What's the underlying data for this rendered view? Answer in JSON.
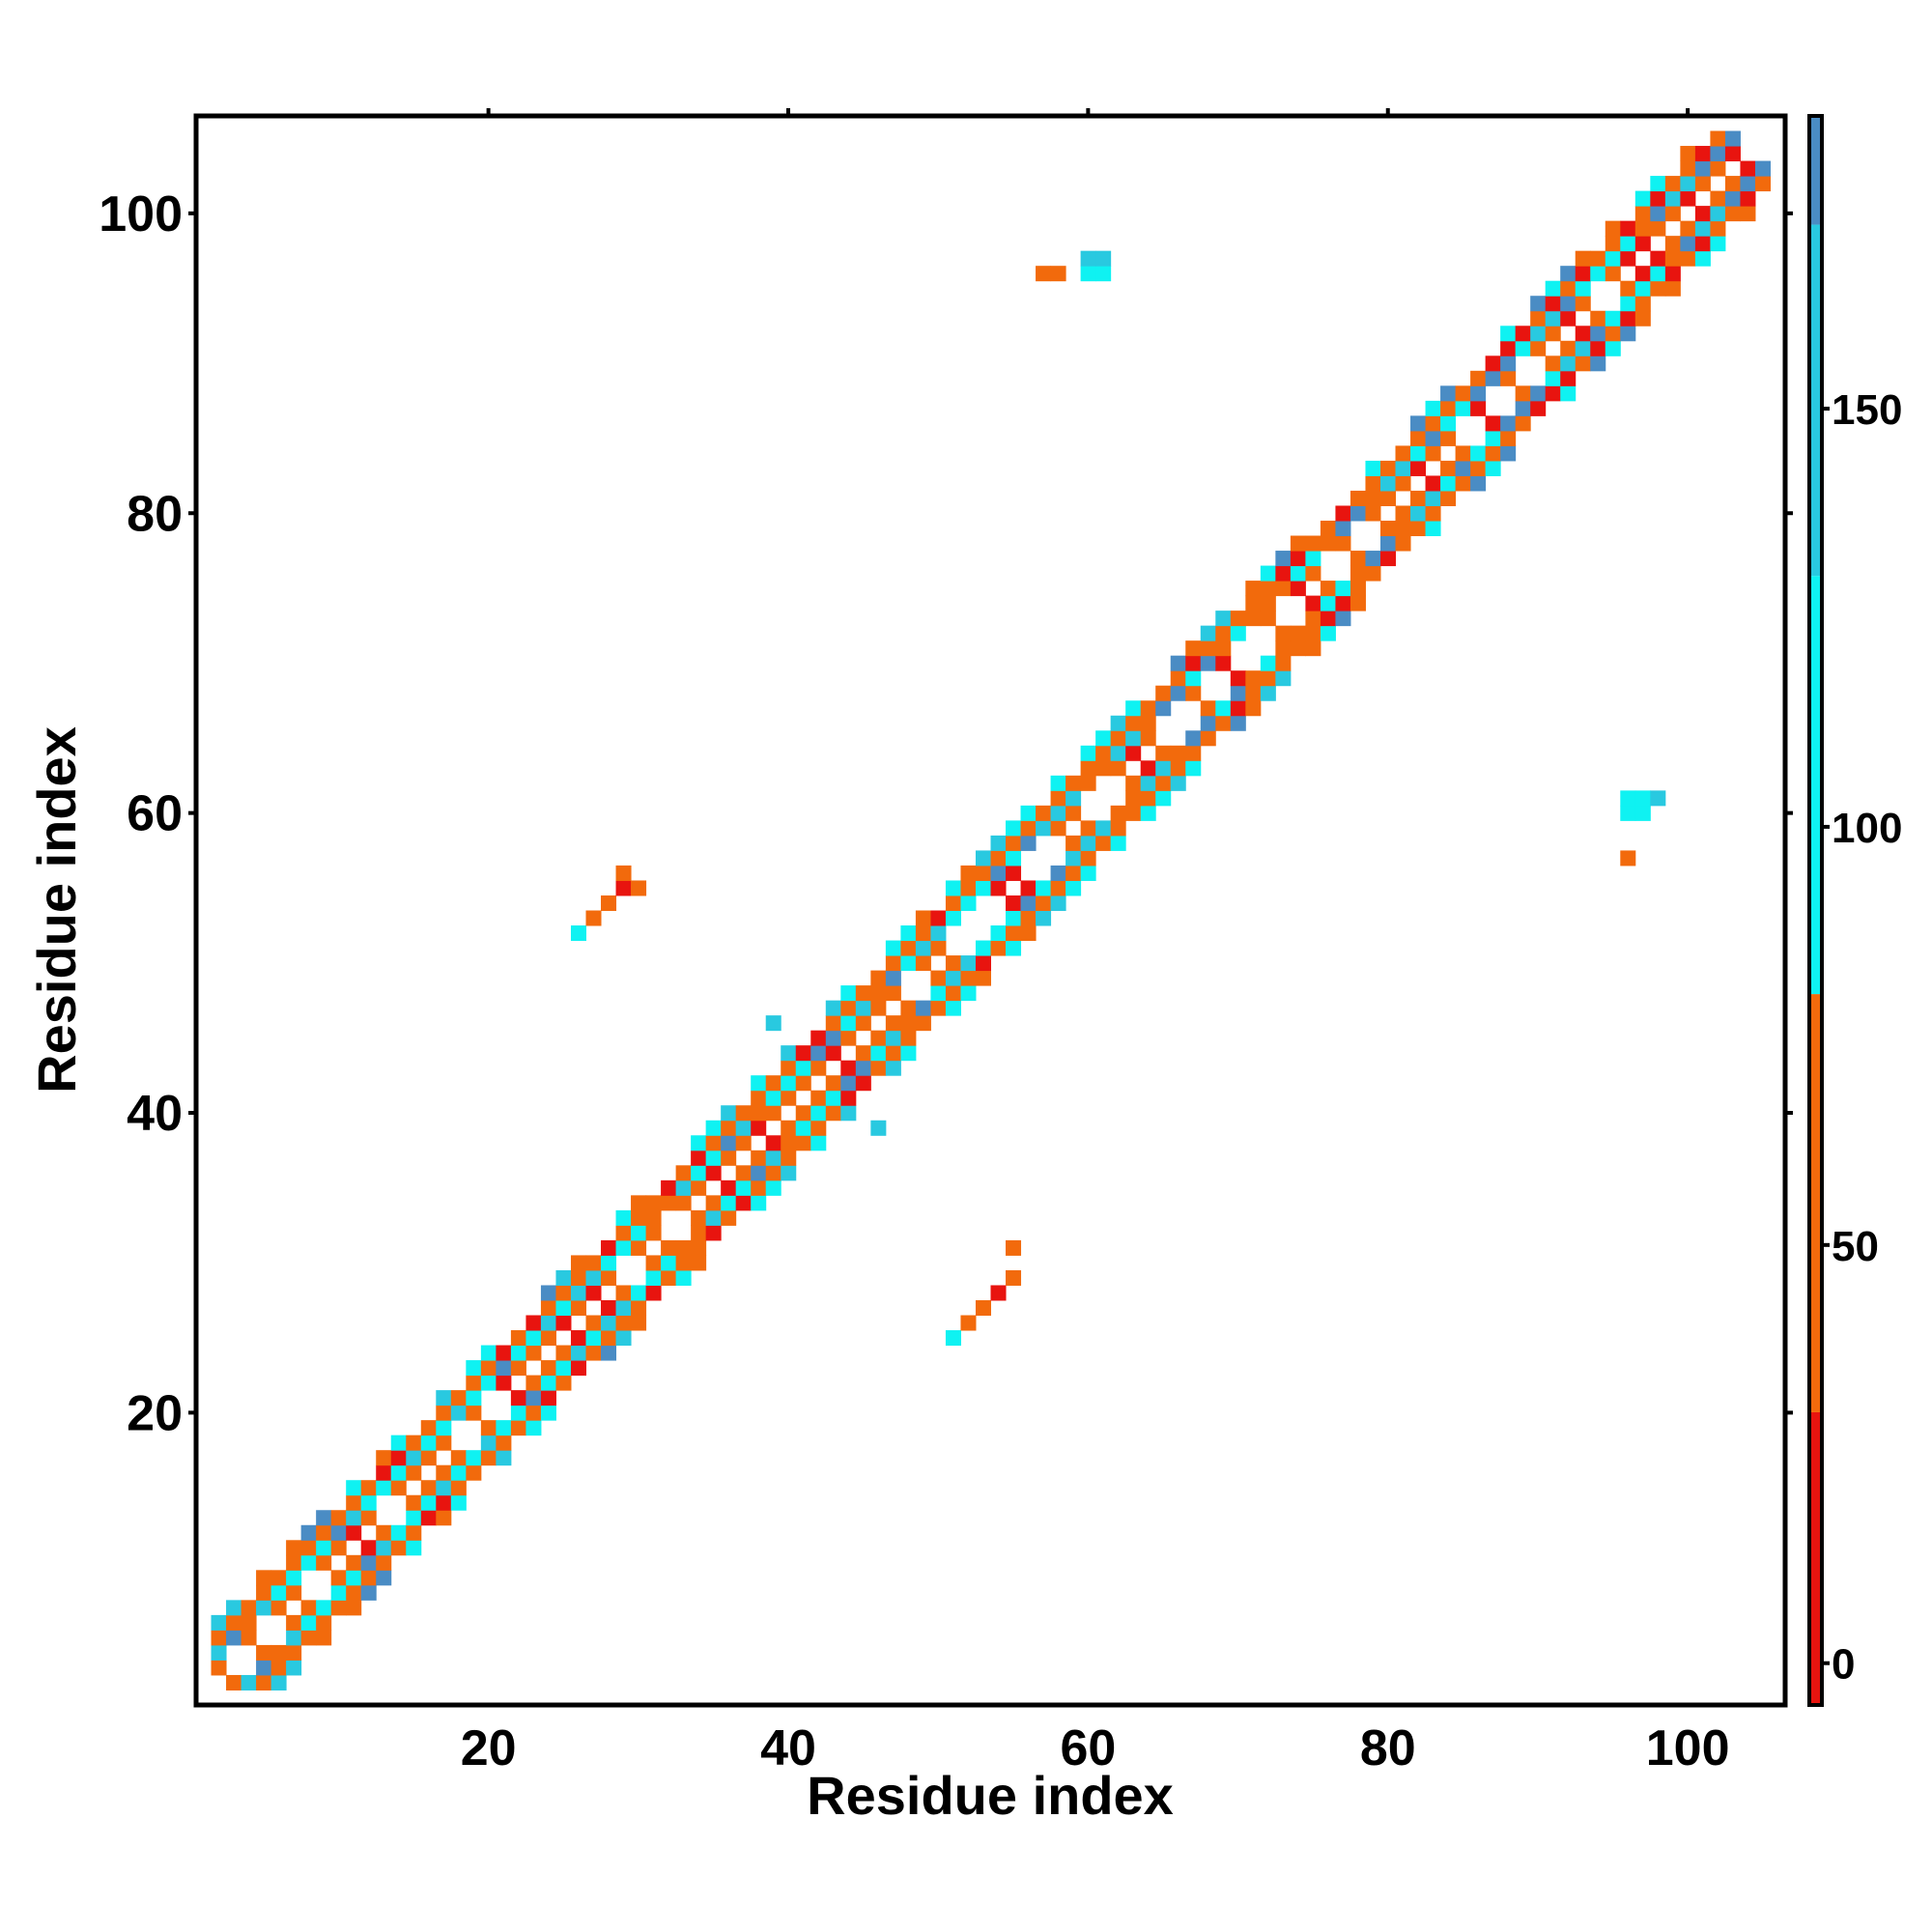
{
  "chart_data": {
    "type": "heatmap",
    "title": "",
    "xlabel": "Residue index",
    "ylabel": "Residue index",
    "xlim": [
      1,
      106
    ],
    "ylim": [
      1,
      106
    ],
    "x_ticks": [
      20,
      40,
      60,
      80,
      100
    ],
    "y_ticks": [
      20,
      40,
      60,
      80,
      100
    ],
    "colorbar": {
      "range": [
        -5,
        185
      ],
      "ticks": [
        0,
        50,
        100,
        150
      ],
      "bands": [
        {
          "from": -5,
          "to": 30,
          "color": "#e8140f"
        },
        {
          "from": 30,
          "to": 80,
          "color": "#f26a0c"
        },
        {
          "from": 80,
          "to": 130,
          "color": "#0ff2f2"
        },
        {
          "from": 130,
          "to": 172,
          "color": "#29c9e0"
        },
        {
          "from": 172,
          "to": 185,
          "color": "#4a8cc4"
        }
      ]
    },
    "contact_band": {
      "description": "near-diagonal contacts |i-j| between 1 and 4",
      "residues": [
        2,
        105
      ]
    },
    "off_diagonal_clusters": [
      {
        "x": 26,
        "y": 52,
        "value": 100
      },
      {
        "x": 27,
        "y": 53,
        "value": 60
      },
      {
        "x": 28,
        "y": 54,
        "value": 45
      },
      {
        "x": 29,
        "y": 55,
        "value": 20
      },
      {
        "x": 29,
        "y": 56,
        "value": 40
      },
      {
        "x": 30,
        "y": 55,
        "value": 70
      },
      {
        "x": 51,
        "y": 25,
        "value": 100
      },
      {
        "x": 52,
        "y": 26,
        "value": 60
      },
      {
        "x": 53,
        "y": 27,
        "value": 45
      },
      {
        "x": 54,
        "y": 28,
        "value": 20
      },
      {
        "x": 55,
        "y": 29,
        "value": 40
      },
      {
        "x": 55,
        "y": 31,
        "value": 70
      },
      {
        "x": 57,
        "y": 96,
        "value": 45
      },
      {
        "x": 58,
        "y": 96,
        "value": 45
      },
      {
        "x": 60,
        "y": 96,
        "value": 100
      },
      {
        "x": 61,
        "y": 96,
        "value": 100
      },
      {
        "x": 60,
        "y": 97,
        "value": 140
      },
      {
        "x": 61,
        "y": 97,
        "value": 140
      },
      {
        "x": 96,
        "y": 57,
        "value": 45
      },
      {
        "x": 96,
        "y": 60,
        "value": 100
      },
      {
        "x": 97,
        "y": 60,
        "value": 100
      },
      {
        "x": 96,
        "y": 61,
        "value": 100
      },
      {
        "x": 97,
        "y": 61,
        "value": 100
      },
      {
        "x": 98,
        "y": 61,
        "value": 140
      },
      {
        "x": 39,
        "y": 46,
        "value": 140
      },
      {
        "x": 46,
        "y": 39,
        "value": 140
      }
    ]
  }
}
